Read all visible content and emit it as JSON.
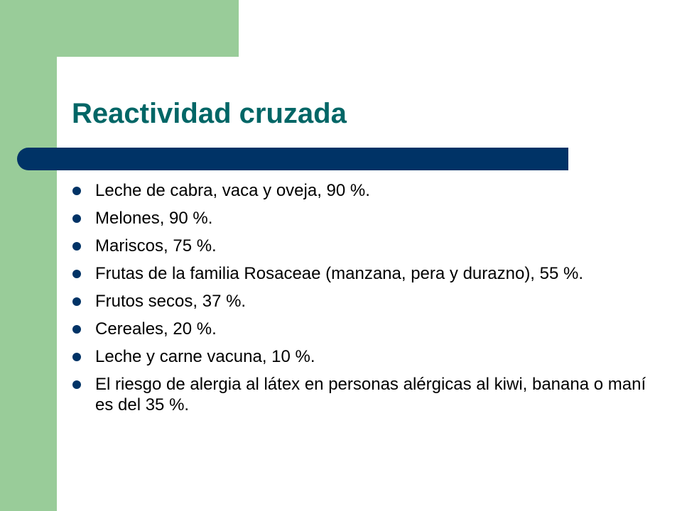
{
  "slide": {
    "title": "Reactividad cruzada",
    "bullets": [
      "Leche de cabra, vaca y oveja, 90 %.",
      "Melones, 90 %.",
      "Mariscos, 75 %.",
      "Frutas de la familia Rosaceae (manzana, pera y durazno), 55 %.",
      "Frutos secos, 37 %.",
      "Cereales, 20 %.",
      "Leche y carne vacuna, 10 %.",
      "El riesgo de alergia al látex en personas alérgicas al kiwi, banana o maní es del 35 %."
    ]
  },
  "colors": {
    "title": "#006666",
    "accent_bar": "#003366",
    "bullet": "#003366",
    "sidebar_green": "#99cc99",
    "background": "#ffffff"
  }
}
